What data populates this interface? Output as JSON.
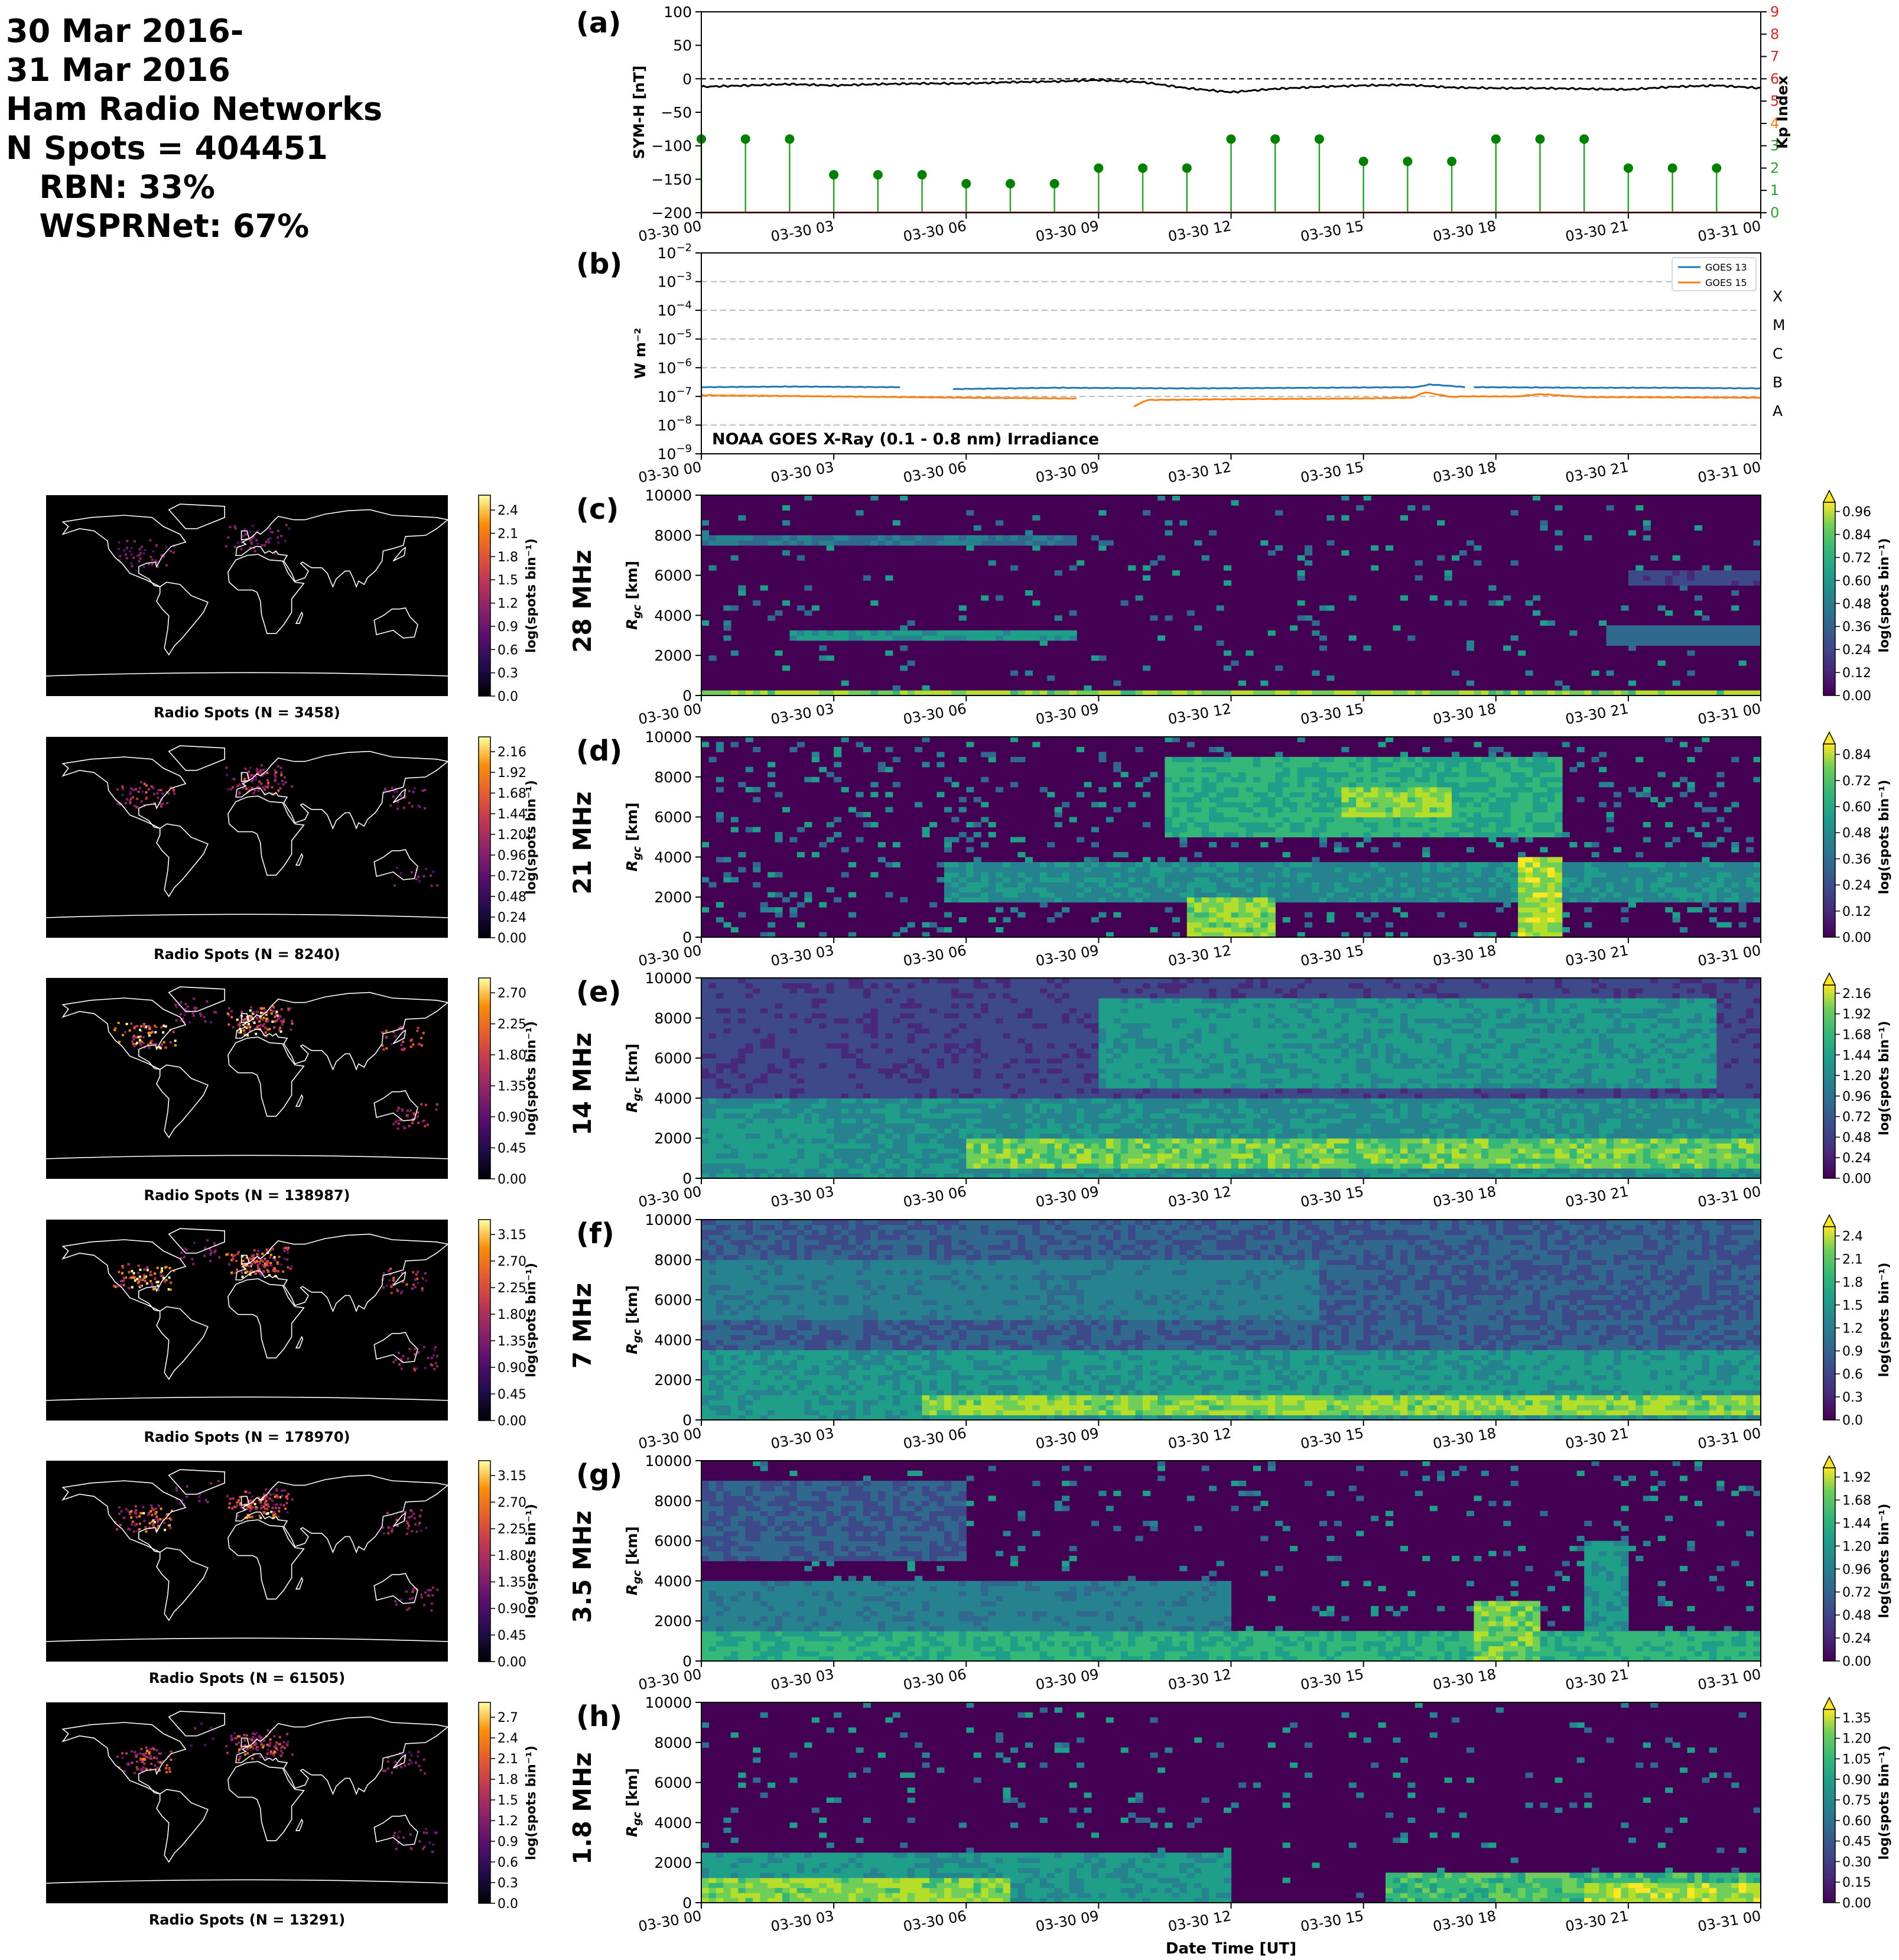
{
  "header": {
    "lines": [
      "30 Mar 2016-",
      "31 Mar 2016",
      "Ham Radio Networks",
      "N Spots = 404451",
      "   RBN: 33%",
      "   WSPRNet: 67%"
    ]
  },
  "time_ticks": [
    "03-30 00",
    "03-30 03",
    "03-30 06",
    "03-30 09",
    "03-30 12",
    "03-30 15",
    "03-30 18",
    "03-30 21",
    "03-31 00"
  ],
  "colors": {
    "symh": "#000000",
    "kp_stem": "#2ca02c",
    "kp_marker": "#008000",
    "goes13": "#1f77b4",
    "goes15": "#ff7f0e",
    "kp_axis": "#d62728"
  },
  "chart_data": [
    {
      "id": "a",
      "panel_label": "(a)",
      "type": "line",
      "ylabel": "SYM-H [nT]",
      "y2label": "Kp Index",
      "ylim": [
        -200,
        100
      ],
      "y2lim": [
        0,
        9
      ],
      "yticks": [
        "100",
        "50",
        "0",
        "−50",
        "−100",
        "−150",
        "−200"
      ],
      "y2ticks": [
        "9",
        "8",
        "7",
        "6",
        "5",
        "4",
        "3",
        "2",
        "1",
        "0"
      ],
      "reference_line": 0,
      "symh": {
        "x_hours": [
          0,
          1,
          2,
          3,
          4,
          5,
          6,
          7,
          8,
          9,
          10,
          11,
          12,
          13,
          14,
          15,
          16,
          17,
          18,
          19,
          20,
          21,
          22,
          23,
          24
        ],
        "values": [
          -12,
          -10,
          -8,
          -10,
          -8,
          -7,
          -7,
          -5,
          -4,
          -2,
          -5,
          -14,
          -20,
          -15,
          -12,
          -10,
          -9,
          -13,
          -14,
          -14,
          -15,
          -16,
          -12,
          -10,
          -14
        ]
      },
      "kp": {
        "x_hours": [
          0,
          1,
          2,
          3,
          4,
          5,
          6,
          7,
          8,
          9,
          10,
          11,
          12,
          13,
          14,
          15,
          16,
          17,
          18,
          19,
          20,
          21,
          22,
          23
        ],
        "values": [
          3.3,
          3.3,
          3.3,
          1.7,
          1.7,
          1.7,
          1.3,
          1.3,
          1.3,
          2.0,
          2.0,
          2.0,
          3.3,
          3.3,
          3.3,
          2.3,
          2.3,
          2.3,
          3.3,
          3.3,
          3.3,
          2.0,
          2.0,
          2.0
        ]
      }
    },
    {
      "id": "b",
      "panel_label": "(b)",
      "type": "line",
      "log_scale": true,
      "ylabel": "W m⁻²",
      "ylim_exp": [
        -9,
        -2
      ],
      "ytick_exps": [
        "−2",
        "−3",
        "−4",
        "−5",
        "−6",
        "−7",
        "−8",
        "−9"
      ],
      "flare_classes": [
        {
          "label": "X",
          "exp": -4
        },
        {
          "label": "M",
          "exp": -5
        },
        {
          "label": "C",
          "exp": -6
        },
        {
          "label": "B",
          "exp": -7
        },
        {
          "label": "A",
          "exp": -8
        }
      ],
      "annotation": "NOAA GOES X-Ray (0.1 - 0.8 nm) Irradiance",
      "legend_position": "top-right",
      "series": [
        {
          "name": "GOES 13",
          "segments": [
            {
              "x_hours": [
                0,
                2,
                4.5
              ],
              "values": [
                2.1e-07,
                2.2e-07,
                2.1e-07
              ]
            },
            {
              "x_hours": [
                5.7,
                8,
                11,
                14,
                16.2,
                16.5,
                17,
                17.3
              ],
              "values": [
                1.8e-07,
                2e-07,
                1.9e-07,
                2e-07,
                2.1e-07,
                2.6e-07,
                2.3e-07,
                2.1e-07
              ]
            },
            {
              "x_hours": [
                17.5,
                20,
                22,
                24
              ],
              "values": [
                2.1e-07,
                2e-07,
                2e-07,
                1.9e-07
              ]
            }
          ]
        },
        {
          "name": "GOES 15",
          "segments": [
            {
              "x_hours": [
                0,
                3,
                6,
                8.5
              ],
              "values": [
                1.1e-07,
                1e-07,
                9e-08,
                8.5e-08
              ]
            },
            {
              "x_hours": [
                9.8,
                10.1,
                12,
                15,
                16.1,
                16.4,
                17,
                17.2,
                18.5,
                19,
                20,
                24
              ],
              "values": [
                4.5e-08,
                7.5e-08,
                8e-08,
                8.5e-08,
                9e-08,
                1.4e-07,
                9.5e-08,
                1e-07,
                1e-07,
                1.2e-07,
                9.5e-08,
                9e-08
              ]
            }
          ]
        }
      ]
    },
    {
      "id": "c",
      "panel_label": "(c)",
      "type": "heatmap",
      "band": "28 MHz",
      "ylabel": "Rgc [km]",
      "ylim": [
        0,
        10000
      ],
      "yticks": [
        "10000",
        "8000",
        "6000",
        "4000",
        "2000",
        "0"
      ],
      "colorbar": {
        "label": "log(spots bin⁻¹)",
        "ticks": [
          "0.96",
          "0.84",
          "0.72",
          "0.60",
          "0.48",
          "0.36",
          "0.24",
          "0.12",
          "0.00"
        ]
      },
      "map": {
        "title": "Radio Spots (N = 3458)",
        "colorbar_label": "log(spots bin⁻¹)",
        "ticks": [
          "2.4",
          "2.1",
          "1.8",
          "1.5",
          "1.2",
          "0.9",
          "0.6",
          "0.3",
          "0.0"
        ]
      },
      "structure": [
        {
          "t0": 0,
          "t1": 24,
          "r0": 0,
          "r1": 300,
          "v": 0.9
        },
        {
          "t0": 2,
          "t1": 8.5,
          "r0": 2700,
          "r1": 3300,
          "v": 0.6
        },
        {
          "t0": 0,
          "t1": 8.5,
          "r0": 7500,
          "r1": 8000,
          "v": 0.45
        },
        {
          "t0": 20.5,
          "t1": 24,
          "r0": 2500,
          "r1": 3500,
          "v": 0.4
        },
        {
          "t0": 21,
          "t1": 24,
          "r0": 5500,
          "r1": 6200,
          "v": 0.25
        }
      ],
      "noise": 0.045,
      "seed": 3
    },
    {
      "id": "d",
      "panel_label": "(d)",
      "type": "heatmap",
      "band": "21 MHz",
      "ylabel": "Rgc [km]",
      "ylim": [
        0,
        10000
      ],
      "yticks": [
        "10000",
        "8000",
        "6000",
        "4000",
        "2000",
        "0"
      ],
      "colorbar": {
        "label": "log(spots bin⁻¹)",
        "ticks": [
          "0.84",
          "0.72",
          "0.60",
          "0.48",
          "0.36",
          "0.24",
          "0.12",
          "0.00"
        ]
      },
      "map": {
        "title": "Radio Spots (N = 8240)",
        "colorbar_label": "log(spots bin⁻¹)",
        "ticks": [
          "2.16",
          "1.92",
          "1.68",
          "1.44",
          "1.20",
          "0.96",
          "0.72",
          "0.48",
          "0.24",
          "0.00"
        ]
      },
      "structure": [
        {
          "t0": 5.5,
          "t1": 24,
          "r0": 1800,
          "r1": 3800,
          "v": 0.55
        },
        {
          "t0": 10.5,
          "t1": 19.5,
          "r0": 5000,
          "r1": 9000,
          "v": 0.7
        },
        {
          "t0": 11,
          "t1": 13,
          "r0": 0,
          "r1": 2000,
          "v": 0.9
        },
        {
          "t0": 18.5,
          "t1": 19.5,
          "r0": 0,
          "r1": 4000,
          "v": 0.95
        },
        {
          "t0": 14.5,
          "t1": 17,
          "r0": 6000,
          "r1": 7500,
          "v": 0.9
        }
      ],
      "noise": 0.1,
      "seed": 7
    },
    {
      "id": "e",
      "panel_label": "(e)",
      "type": "heatmap",
      "band": "14 MHz",
      "ylabel": "Rgc [km]",
      "ylim": [
        0,
        10000
      ],
      "yticks": [
        "10000",
        "8000",
        "6000",
        "4000",
        "2000",
        "0"
      ],
      "colorbar": {
        "label": "log(spots bin⁻¹)",
        "ticks": [
          "2.16",
          "1.92",
          "1.68",
          "1.44",
          "1.20",
          "0.96",
          "0.72",
          "0.48",
          "0.24",
          "0.00"
        ]
      },
      "map": {
        "title": "Radio Spots (N = 138987)",
        "colorbar_label": "log(spots bin⁻¹)",
        "ticks": [
          "2.70",
          "2.25",
          "1.80",
          "1.35",
          "0.90",
          "0.45",
          "0.00"
        ]
      },
      "structure": [
        {
          "t0": 0,
          "t1": 24,
          "r0": 0,
          "r1": 4000,
          "v": 0.55
        },
        {
          "t0": 6,
          "t1": 24,
          "r0": 500,
          "r1": 2000,
          "v": 0.85
        },
        {
          "t0": 0,
          "t1": 3,
          "r0": 500,
          "r1": 3000,
          "v": 0.6
        },
        {
          "t0": 9,
          "t1": 23,
          "r0": 4500,
          "r1": 9000,
          "v": 0.6
        },
        {
          "t0": 0,
          "t1": 24,
          "r0": 4000,
          "r1": 10000,
          "v": 0.25
        }
      ],
      "noise": 0.08,
      "seed": 11
    },
    {
      "id": "f",
      "panel_label": "(f)",
      "type": "heatmap",
      "band": "7 MHz",
      "ylabel": "Rgc [km]",
      "ylim": [
        0,
        10000
      ],
      "yticks": [
        "10000",
        "8000",
        "6000",
        "4000",
        "2000",
        "0"
      ],
      "colorbar": {
        "label": "log(spots bin⁻¹)",
        "ticks": [
          "2.4",
          "2.1",
          "1.8",
          "1.5",
          "1.2",
          "0.9",
          "0.6",
          "0.3",
          "0.0"
        ]
      },
      "map": {
        "title": "Radio Spots (N = 178970)",
        "colorbar_label": "log(spots bin⁻¹)",
        "ticks": [
          "3.15",
          "2.70",
          "2.25",
          "1.80",
          "1.35",
          "0.90",
          "0.45",
          "0.00"
        ]
      },
      "structure": [
        {
          "t0": 0,
          "t1": 24,
          "r0": 0,
          "r1": 10000,
          "v": 0.35
        },
        {
          "t0": 0,
          "t1": 24,
          "r0": 0,
          "r1": 3500,
          "v": 0.6
        },
        {
          "t0": 5,
          "t1": 24,
          "r0": 300,
          "r1": 1300,
          "v": 0.9
        },
        {
          "t0": 0,
          "t1": 14,
          "r0": 5000,
          "r1": 8000,
          "v": 0.5
        }
      ],
      "noise": 0.07,
      "seed": 19
    },
    {
      "id": "g",
      "panel_label": "(g)",
      "type": "heatmap",
      "band": "3.5 MHz",
      "ylabel": "Rgc [km]",
      "ylim": [
        0,
        10000
      ],
      "yticks": [
        "10000",
        "8000",
        "6000",
        "4000",
        "2000",
        "0"
      ],
      "colorbar": {
        "label": "log(spots bin⁻¹)",
        "ticks": [
          "1.92",
          "1.68",
          "1.44",
          "1.20",
          "0.96",
          "0.72",
          "0.48",
          "0.24",
          "0.00"
        ]
      },
      "map": {
        "title": "Radio Spots (N = 61505)",
        "colorbar_label": "log(spots bin⁻¹)",
        "ticks": [
          "3.15",
          "2.70",
          "2.25",
          "1.80",
          "1.35",
          "0.90",
          "0.45",
          "0.00"
        ]
      },
      "structure": [
        {
          "t0": 0,
          "t1": 12,
          "r0": 0,
          "r1": 4000,
          "v": 0.5
        },
        {
          "t0": 0,
          "t1": 24,
          "r0": 0,
          "r1": 1500,
          "v": 0.7
        },
        {
          "t0": 0,
          "t1": 6,
          "r0": 5000,
          "r1": 9000,
          "v": 0.35
        },
        {
          "t0": 17.5,
          "t1": 19,
          "r0": 0,
          "r1": 3000,
          "v": 0.85
        },
        {
          "t0": 20,
          "t1": 21,
          "r0": 0,
          "r1": 6000,
          "v": 0.6
        }
      ],
      "noise": 0.07,
      "seed": 23
    },
    {
      "id": "h",
      "panel_label": "(h)",
      "type": "heatmap",
      "band": "1.8 MHz",
      "ylabel": "Rgc [km]",
      "ylim": [
        0,
        10000
      ],
      "yticks": [
        "10000",
        "8000",
        "6000",
        "4000",
        "2000",
        "0"
      ],
      "colorbar": {
        "label": "log(spots bin⁻¹)",
        "ticks": [
          "1.35",
          "1.20",
          "1.05",
          "0.90",
          "0.75",
          "0.60",
          "0.45",
          "0.30",
          "0.15",
          "0.00"
        ]
      },
      "map": {
        "title": "Radio Spots (N = 13291)",
        "colorbar_label": "log(spots bin⁻¹)",
        "ticks": [
          "2.7",
          "2.4",
          "2.1",
          "1.8",
          "1.5",
          "1.2",
          "0.9",
          "0.6",
          "0.3",
          "0.0"
        ]
      },
      "structure": [
        {
          "t0": 0,
          "t1": 12,
          "r0": 0,
          "r1": 2500,
          "v": 0.6
        },
        {
          "t0": 0,
          "t1": 7,
          "r0": 0,
          "r1": 1200,
          "v": 0.9
        },
        {
          "t0": 15.5,
          "t1": 24,
          "r0": 0,
          "r1": 1500,
          "v": 0.75
        },
        {
          "t0": 20,
          "t1": 24,
          "r0": 0,
          "r1": 900,
          "v": 0.95
        }
      ],
      "noise": 0.04,
      "seed": 29
    }
  ],
  "xlabel": "Date Time [UT]"
}
